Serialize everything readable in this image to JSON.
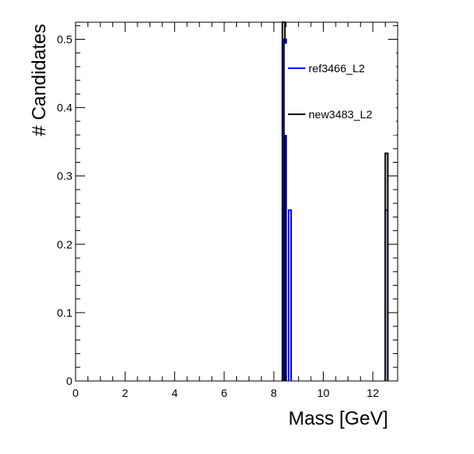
{
  "chart_data": {
    "type": "histogram",
    "xlabel": "Mass [GeV]",
    "ylabel": "# Candidates",
    "xlim": [
      0,
      13
    ],
    "ylim": [
      0,
      0.525
    ],
    "x_ticks": [
      "0",
      "2",
      "4",
      "6",
      "8",
      "10",
      "12"
    ],
    "y_ticks": [
      "0",
      "0.1",
      "0.2",
      "0.3",
      "0.4",
      "0.5"
    ],
    "x_tick_values": [
      0,
      2,
      4,
      6,
      8,
      10,
      12
    ],
    "y_tick_values": [
      0,
      0.1,
      0.2,
      0.3,
      0.4,
      0.5
    ],
    "legend_position": "top-right",
    "grid": false,
    "series": [
      {
        "name": "ref3466_L2",
        "color": "#0000ff",
        "bars": [
          {
            "x0": 8.4,
            "x1": 8.5,
            "y": 0.5
          },
          {
            "x0": 8.6,
            "x1": 8.7,
            "y": 0.25
          },
          {
            "x0": 12.5,
            "x1": 12.6,
            "y": 0.25
          }
        ]
      },
      {
        "name": "new3483_L2",
        "color": "#000000",
        "bars": [
          {
            "x0": 8.35,
            "x1": 8.45,
            "y": 0.525
          },
          {
            "x0": 12.5,
            "x1": 12.6,
            "y": 0.333
          }
        ]
      }
    ]
  }
}
